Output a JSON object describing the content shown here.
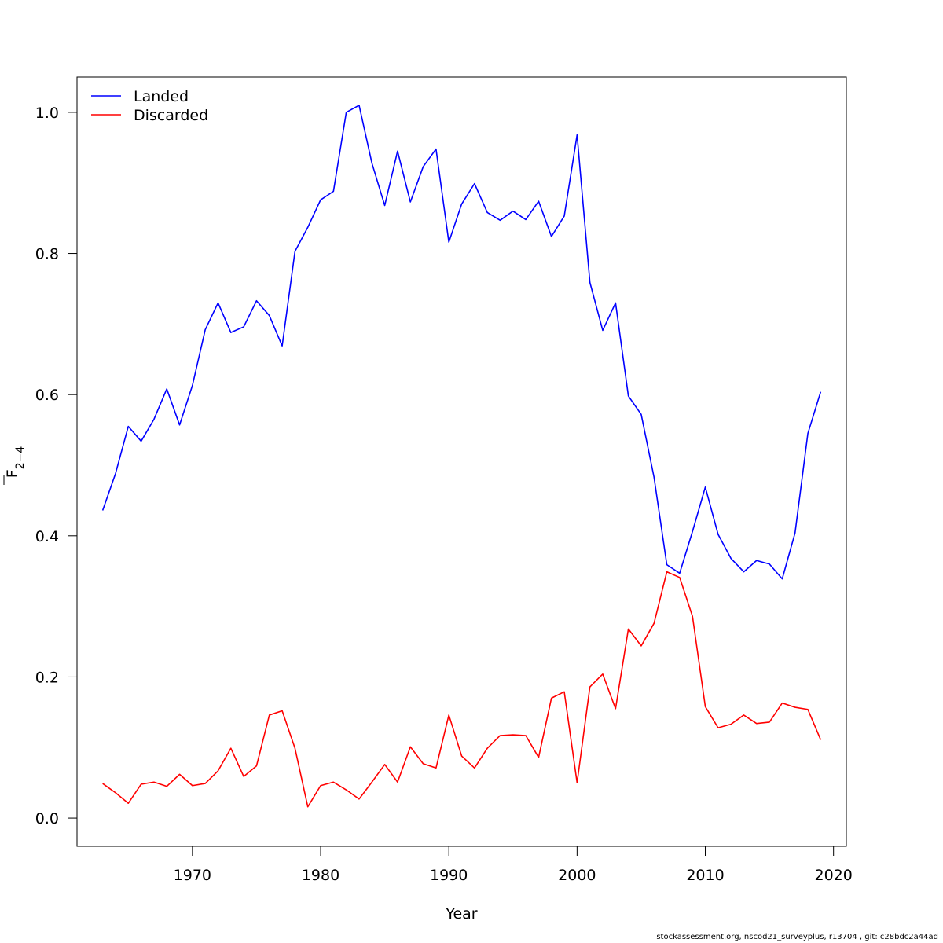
{
  "chart_data": {
    "type": "line",
    "xlabel": "Year",
    "ylabel_main": "F",
    "ylabel_sub": "2−4",
    "xlim": [
      1961,
      2021
    ],
    "ylim": [
      -0.04,
      1.05
    ],
    "xticks": [
      1970,
      1980,
      1990,
      2000,
      2010,
      2020
    ],
    "yticks": [
      0.0,
      0.2,
      0.4,
      0.6,
      0.8,
      1.0
    ],
    "ytick_labels": [
      "0.0",
      "0.2",
      "0.4",
      "0.6",
      "0.8",
      "1.0"
    ],
    "legend_position": "top-left",
    "x": [
      1963,
      1964,
      1965,
      1966,
      1967,
      1968,
      1969,
      1970,
      1971,
      1972,
      1973,
      1974,
      1975,
      1976,
      1977,
      1978,
      1979,
      1980,
      1981,
      1982,
      1983,
      1984,
      1985,
      1986,
      1987,
      1988,
      1989,
      1990,
      1991,
      1992,
      1993,
      1994,
      1995,
      1996,
      1997,
      1998,
      1999,
      2000,
      2001,
      2002,
      2003,
      2004,
      2005,
      2006,
      2007,
      2008,
      2009,
      2010,
      2011,
      2012,
      2013,
      2014,
      2015,
      2016,
      2017,
      2018,
      2019
    ],
    "series": [
      {
        "name": "Landed",
        "color": "#0000ff",
        "values": [
          0.436,
          0.488,
          0.555,
          0.534,
          0.565,
          0.608,
          0.557,
          0.613,
          0.692,
          0.73,
          0.688,
          0.696,
          0.733,
          0.712,
          0.669,
          0.803,
          0.837,
          0.876,
          0.888,
          1.0,
          1.01,
          0.928,
          0.868,
          0.945,
          0.873,
          0.923,
          0.948,
          0.816,
          0.87,
          0.899,
          0.858,
          0.847,
          0.86,
          0.848,
          0.874,
          0.824,
          0.853,
          0.968,
          0.759,
          0.691,
          0.73,
          0.598,
          0.572,
          0.483,
          0.359,
          0.347,
          0.406,
          0.469,
          0.402,
          0.368,
          0.349,
          0.365,
          0.36,
          0.339,
          0.404,
          0.545,
          0.604
        ]
      },
      {
        "name": "Discarded",
        "color": "#ff0000",
        "values": [
          0.049,
          0.036,
          0.021,
          0.048,
          0.051,
          0.045,
          0.062,
          0.046,
          0.049,
          0.067,
          0.099,
          0.059,
          0.074,
          0.146,
          0.152,
          0.099,
          0.016,
          0.046,
          0.051,
          0.04,
          0.027,
          0.051,
          0.076,
          0.051,
          0.101,
          0.077,
          0.071,
          0.146,
          0.088,
          0.071,
          0.099,
          0.117,
          0.118,
          0.117,
          0.086,
          0.17,
          0.179,
          0.05,
          0.186,
          0.204,
          0.155,
          0.268,
          0.244,
          0.276,
          0.349,
          0.341,
          0.286,
          0.158,
          0.128,
          0.133,
          0.146,
          0.134,
          0.136,
          0.163,
          0.157,
          0.154,
          0.111
        ]
      }
    ]
  },
  "footer_text": "stockassessment.org, nscod21_surveyplus, r13704 , git: c28bdc2a44ad"
}
